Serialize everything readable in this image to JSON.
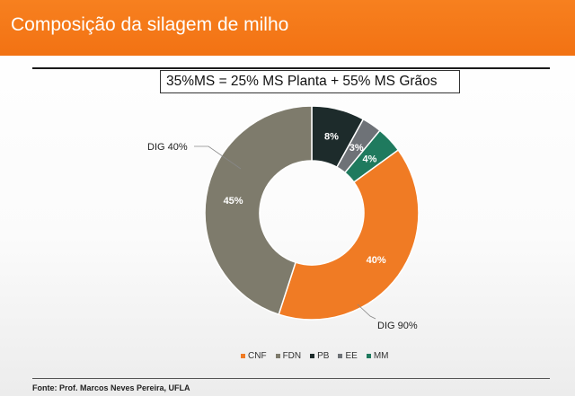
{
  "header": {
    "title": "Composição da silagem de milho"
  },
  "formula": "35%MS = 25% MS Planta + 55% MS Grãos",
  "chart_data": {
    "type": "pie",
    "donut": true,
    "categories": [
      "CNF",
      "FDN",
      "PB",
      "EE",
      "MM"
    ],
    "values": [
      40,
      45,
      8,
      3,
      4
    ],
    "labels": [
      "40%",
      "45%",
      "8%",
      "3%",
      "4%"
    ],
    "colors": [
      "#f07b24",
      "#7e7b6c",
      "#1d2b2b",
      "#6e7277",
      "#1f7a5e"
    ],
    "legend_position": "bottom",
    "annotations": [
      {
        "text": "DIG 40%",
        "target": "FDN"
      },
      {
        "text": "DIG 90%",
        "target": "CNF"
      }
    ]
  },
  "source": "Fonte: Prof. Marcos Neves Pereira, UFLA"
}
